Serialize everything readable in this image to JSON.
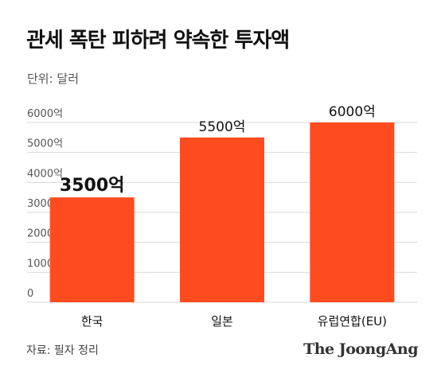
{
  "header": {
    "title": "관세 폭탄 피하려 약속한 투자액",
    "unit": "단위: 달러"
  },
  "footer": {
    "source": "자료: 필자 정리",
    "brand": "The JoongAng"
  },
  "colors": {
    "bar": "#FF4C1F",
    "grid": "#D9D9D9",
    "tick_text": "#555555"
  },
  "chart_data": {
    "type": "bar",
    "categories": [
      "한국",
      "일본",
      "유럽연합(EU)"
    ],
    "values": [
      3500,
      5500,
      6000
    ],
    "data_labels": [
      "3500억",
      "5500억",
      "6000억"
    ],
    "ylim": [
      0,
      6000
    ],
    "yticks": [
      0,
      1000,
      2000,
      3000,
      4000,
      5000,
      6000
    ],
    "ytick_labels": [
      "0",
      "1000억",
      "2000억",
      "3000억",
      "4000억",
      "5000억",
      "6000억"
    ],
    "grid": true
  }
}
